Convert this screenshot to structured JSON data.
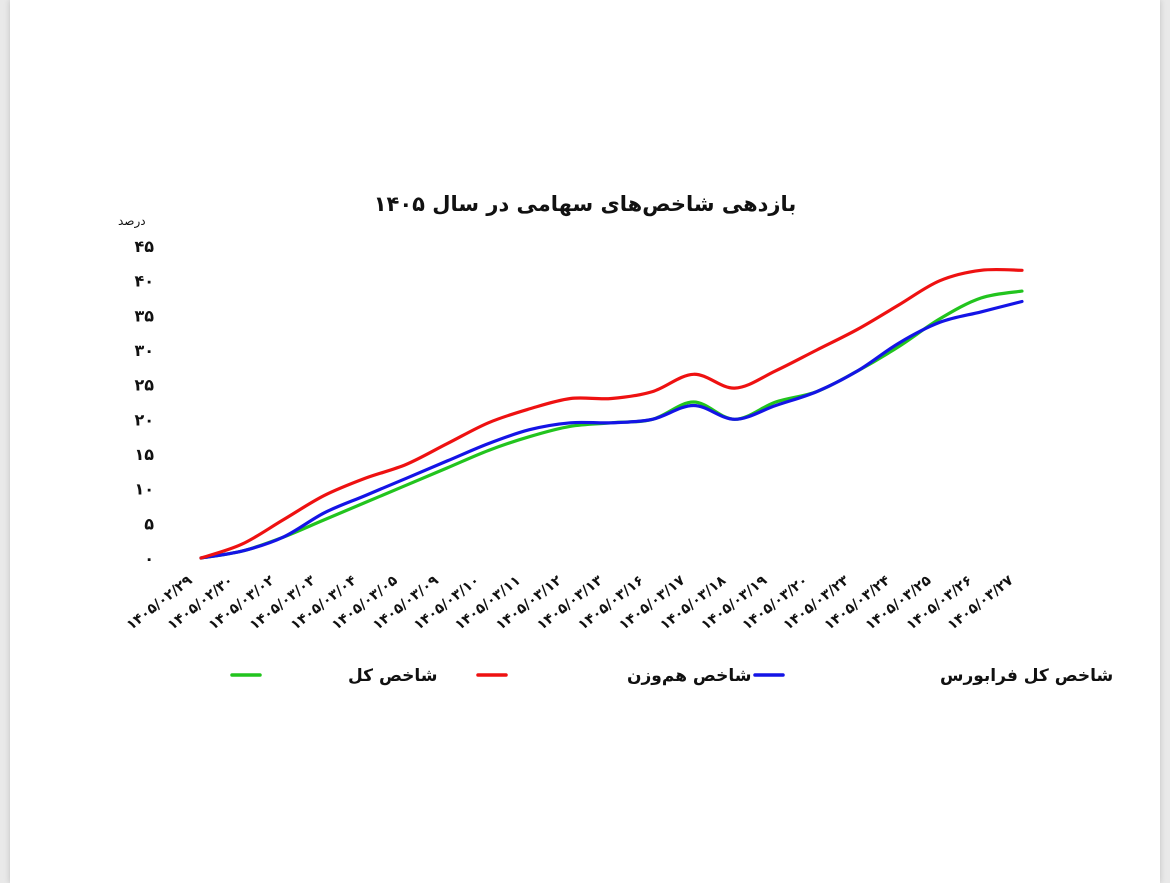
{
  "chart_data": {
    "type": "line",
    "title": "بازدهی شاخص‌های سهامی در سال ۱۴۰۵",
    "ylabel": "درصد",
    "xlabel": "",
    "ylim": [
      0,
      45
    ],
    "yticks": [
      0,
      5,
      10,
      15,
      20,
      25,
      30,
      35,
      40,
      45
    ],
    "ytick_labels": [
      "۰",
      "۵",
      "۱۰",
      "۱۵",
      "۲۰",
      "۲۵",
      "۳۰",
      "۳۵",
      "۴۰",
      "۴۵"
    ],
    "categories": [
      "۱۴۰۵/۰۲/۲۹",
      "۱۴۰۵/۰۲/۳۰",
      "۱۴۰۵/۰۳/۰۲",
      "۱۴۰۵/۰۳/۰۳",
      "۱۴۰۵/۰۳/۰۴",
      "۱۴۰۵/۰۳/۰۵",
      "۱۴۰۵/۰۳/۰۹",
      "۱۴۰۵/۰۳/۱۰",
      "۱۴۰۵/۰۳/۱۱",
      "۱۴۰۵/۰۳/۱۲",
      "۱۴۰۵/۰۳/۱۳",
      "۱۴۰۵/۰۳/۱۶",
      "۱۴۰۵/۰۳/۱۷",
      "۱۴۰۵/۰۳/۱۸",
      "۱۴۰۵/۰۳/۱۹",
      "۱۴۰۵/۰۳/۲۰",
      "۱۴۰۵/۰۳/۲۳",
      "۱۴۰۵/۰۳/۲۴",
      "۱۴۰۵/۰۳/۲۵",
      "۱۴۰۵/۰۳/۲۶",
      "۱۴۰۵/۰۳/۲۷"
    ],
    "series": [
      {
        "name": "شاخص کل",
        "color": "#22c41e",
        "values": [
          0,
          1,
          3,
          5.5,
          8,
          10.5,
          13,
          15.5,
          17.5,
          19,
          19.5,
          20,
          22.5,
          20,
          22.5,
          24,
          27,
          30.5,
          34.5,
          37.5,
          38.5
        ]
      },
      {
        "name": "شاخص هم‌وزن",
        "color": "#ee1111",
        "values": [
          0,
          2,
          5.5,
          9,
          11.5,
          13.5,
          16.5,
          19.5,
          21.5,
          23,
          23,
          24,
          26.5,
          24.5,
          27,
          30,
          33,
          36.5,
          40,
          41.5,
          41.5
        ]
      },
      {
        "name": "شاخص کل فرابورس",
        "color": "#1414e6",
        "values": [
          0,
          1,
          3,
          6.5,
          9,
          11.5,
          14,
          16.5,
          18.5,
          19.5,
          19.5,
          20,
          22,
          20,
          22,
          24,
          27,
          31,
          34,
          35.5,
          37
        ]
      }
    ],
    "legend_position": "bottom",
    "grid": false
  }
}
